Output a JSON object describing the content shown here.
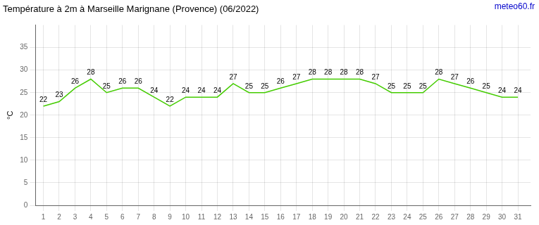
{
  "chart_data": {
    "type": "line",
    "title": "Température à 2m à Marseille Marignane (Provence) (06/2022)",
    "ylabel": "°C",
    "annotations": [
      {
        "text": "meteo60.fr",
        "color": "#0000cc"
      }
    ],
    "x": [
      1,
      2,
      3,
      4,
      5,
      6,
      7,
      8,
      9,
      10,
      11,
      12,
      13,
      14,
      15,
      16,
      17,
      18,
      19,
      20,
      21,
      22,
      23,
      24,
      25,
      26,
      27,
      28,
      29,
      30,
      31
    ],
    "values": [
      22,
      23,
      26,
      28,
      25,
      26,
      26,
      24,
      22,
      24,
      24,
      24,
      27,
      25,
      25,
      26,
      27,
      28,
      28,
      28,
      28,
      27,
      25,
      25,
      25,
      28,
      27,
      26,
      25,
      24,
      24
    ],
    "color": "#44cc00",
    "xlim": [
      0.5,
      31.8
    ],
    "xticks": [
      1,
      2,
      3,
      4,
      5,
      6,
      7,
      8,
      9,
      10,
      11,
      12,
      13,
      14,
      15,
      16,
      17,
      18,
      19,
      20,
      21,
      22,
      23,
      24,
      25,
      26,
      27,
      28,
      29,
      30,
      31
    ],
    "ylim": [
      0,
      40
    ],
    "yticks": [
      0,
      5,
      10,
      15,
      20,
      25,
      30,
      35
    ],
    "grid": true,
    "data_labels": true
  }
}
